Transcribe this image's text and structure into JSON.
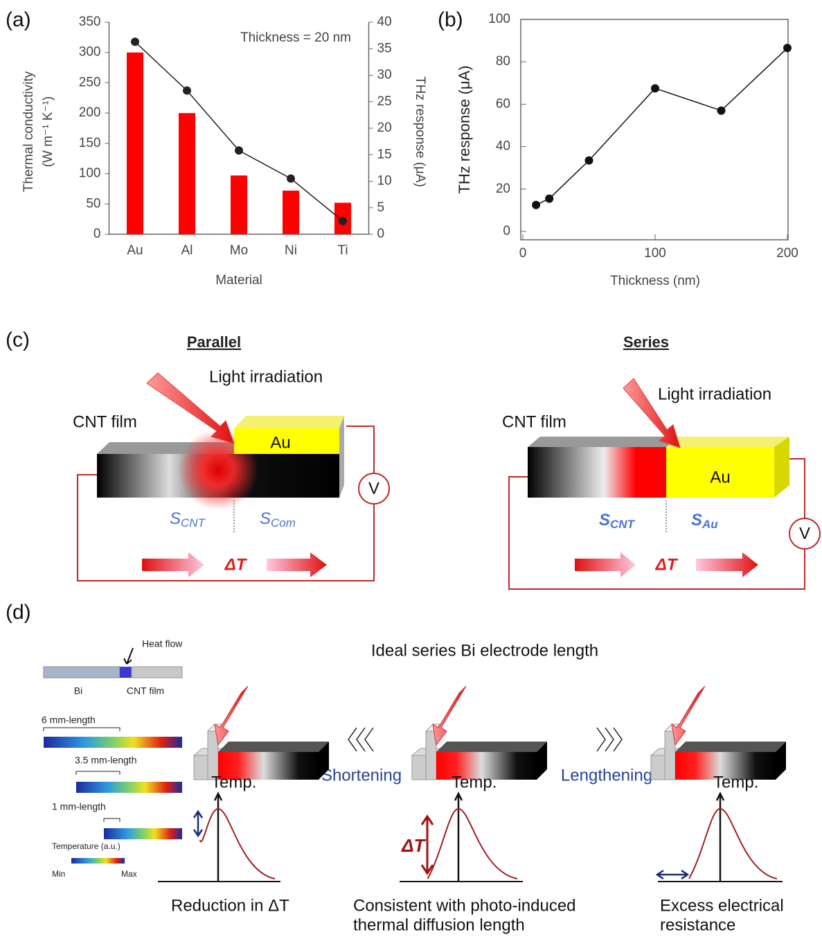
{
  "labels": {
    "a": "(a)",
    "b": "(b)",
    "c": "(c)",
    "d": "(d)"
  },
  "chart_data": [
    {
      "type": "bar",
      "annotation": "Thickness = 20 nm",
      "xlabel": "Material",
      "ylabel": [
        "Thermal conductivity",
        "(W m⁻¹ K⁻¹)"
      ],
      "y2label": "THz response (μA)",
      "categories": [
        "Au",
        "Al",
        "Mo",
        "Ni",
        "Ti"
      ],
      "series": [
        {
          "type": "bar",
          "color": "#ff0000",
          "values": [
            300,
            200,
            97,
            72,
            52
          ]
        },
        {
          "type": "line",
          "color": "#222222",
          "axis": "y2",
          "values": [
            36.3,
            27.1,
            15.8,
            10.5,
            2.5
          ]
        }
      ],
      "ylim": [
        0,
        350
      ],
      "yticks": [
        0,
        50,
        100,
        150,
        200,
        250,
        300,
        350
      ],
      "y2lim": [
        0,
        40
      ],
      "y2ticks": [
        0,
        5,
        10,
        15,
        20,
        25,
        30,
        35,
        40
      ]
    },
    {
      "type": "line",
      "xlabel": "Thickness (nm)",
      "ylabel": "THz response (μA)",
      "color": "#111111",
      "x": [
        10,
        20,
        50,
        100,
        150,
        200
      ],
      "values": [
        12.5,
        15.5,
        33.5,
        67.5,
        57,
        86.5
      ],
      "xlim": [
        0,
        200
      ],
      "xticks": [
        0,
        100,
        200
      ],
      "ylim": [
        0,
        100
      ],
      "yticks": [
        0,
        20,
        40,
        60,
        80,
        100
      ]
    }
  ],
  "diagram_c": {
    "parallel": {
      "title": "Parallel",
      "light": "Light irradiation",
      "film": "CNT film",
      "electrode": "Au",
      "meter": "V",
      "s_left": {
        "symbol": "S",
        "sub": "CNT"
      },
      "s_right": {
        "symbol": "S",
        "sub": "Com"
      },
      "delta_t": "ΔT"
    },
    "series": {
      "title": "Series",
      "light": "Light irradiation",
      "film": "CNT film",
      "electrode": "Au",
      "meter": "V",
      "s_left": {
        "symbol": "S",
        "sub": "CNT"
      },
      "s_right": {
        "symbol": "S",
        "sub": "Au"
      },
      "delta_t": "ΔT"
    }
  },
  "diagram_d": {
    "inset": {
      "heat_flow": "Heat flow",
      "left": "Bi",
      "right": "CNT film",
      "lengths": [
        "6 mm-length",
        "3.5 mm-length",
        "1 mm-length"
      ],
      "scale_title": "Temperature (a.u.)",
      "min": "Min",
      "max": "Max"
    },
    "title": "Ideal series Bi electrode length",
    "shortening": "Shortening",
    "lengthening": "Lengthening",
    "temp": [
      "Temp.",
      "Temp.",
      "Temp."
    ],
    "delta_t": "ΔT",
    "captions": [
      [
        "Reduction in ΔT"
      ],
      [
        "Consistent with photo-induced",
        "thermal diffusion length"
      ],
      [
        "Excess electrical",
        "resistance"
      ]
    ]
  }
}
